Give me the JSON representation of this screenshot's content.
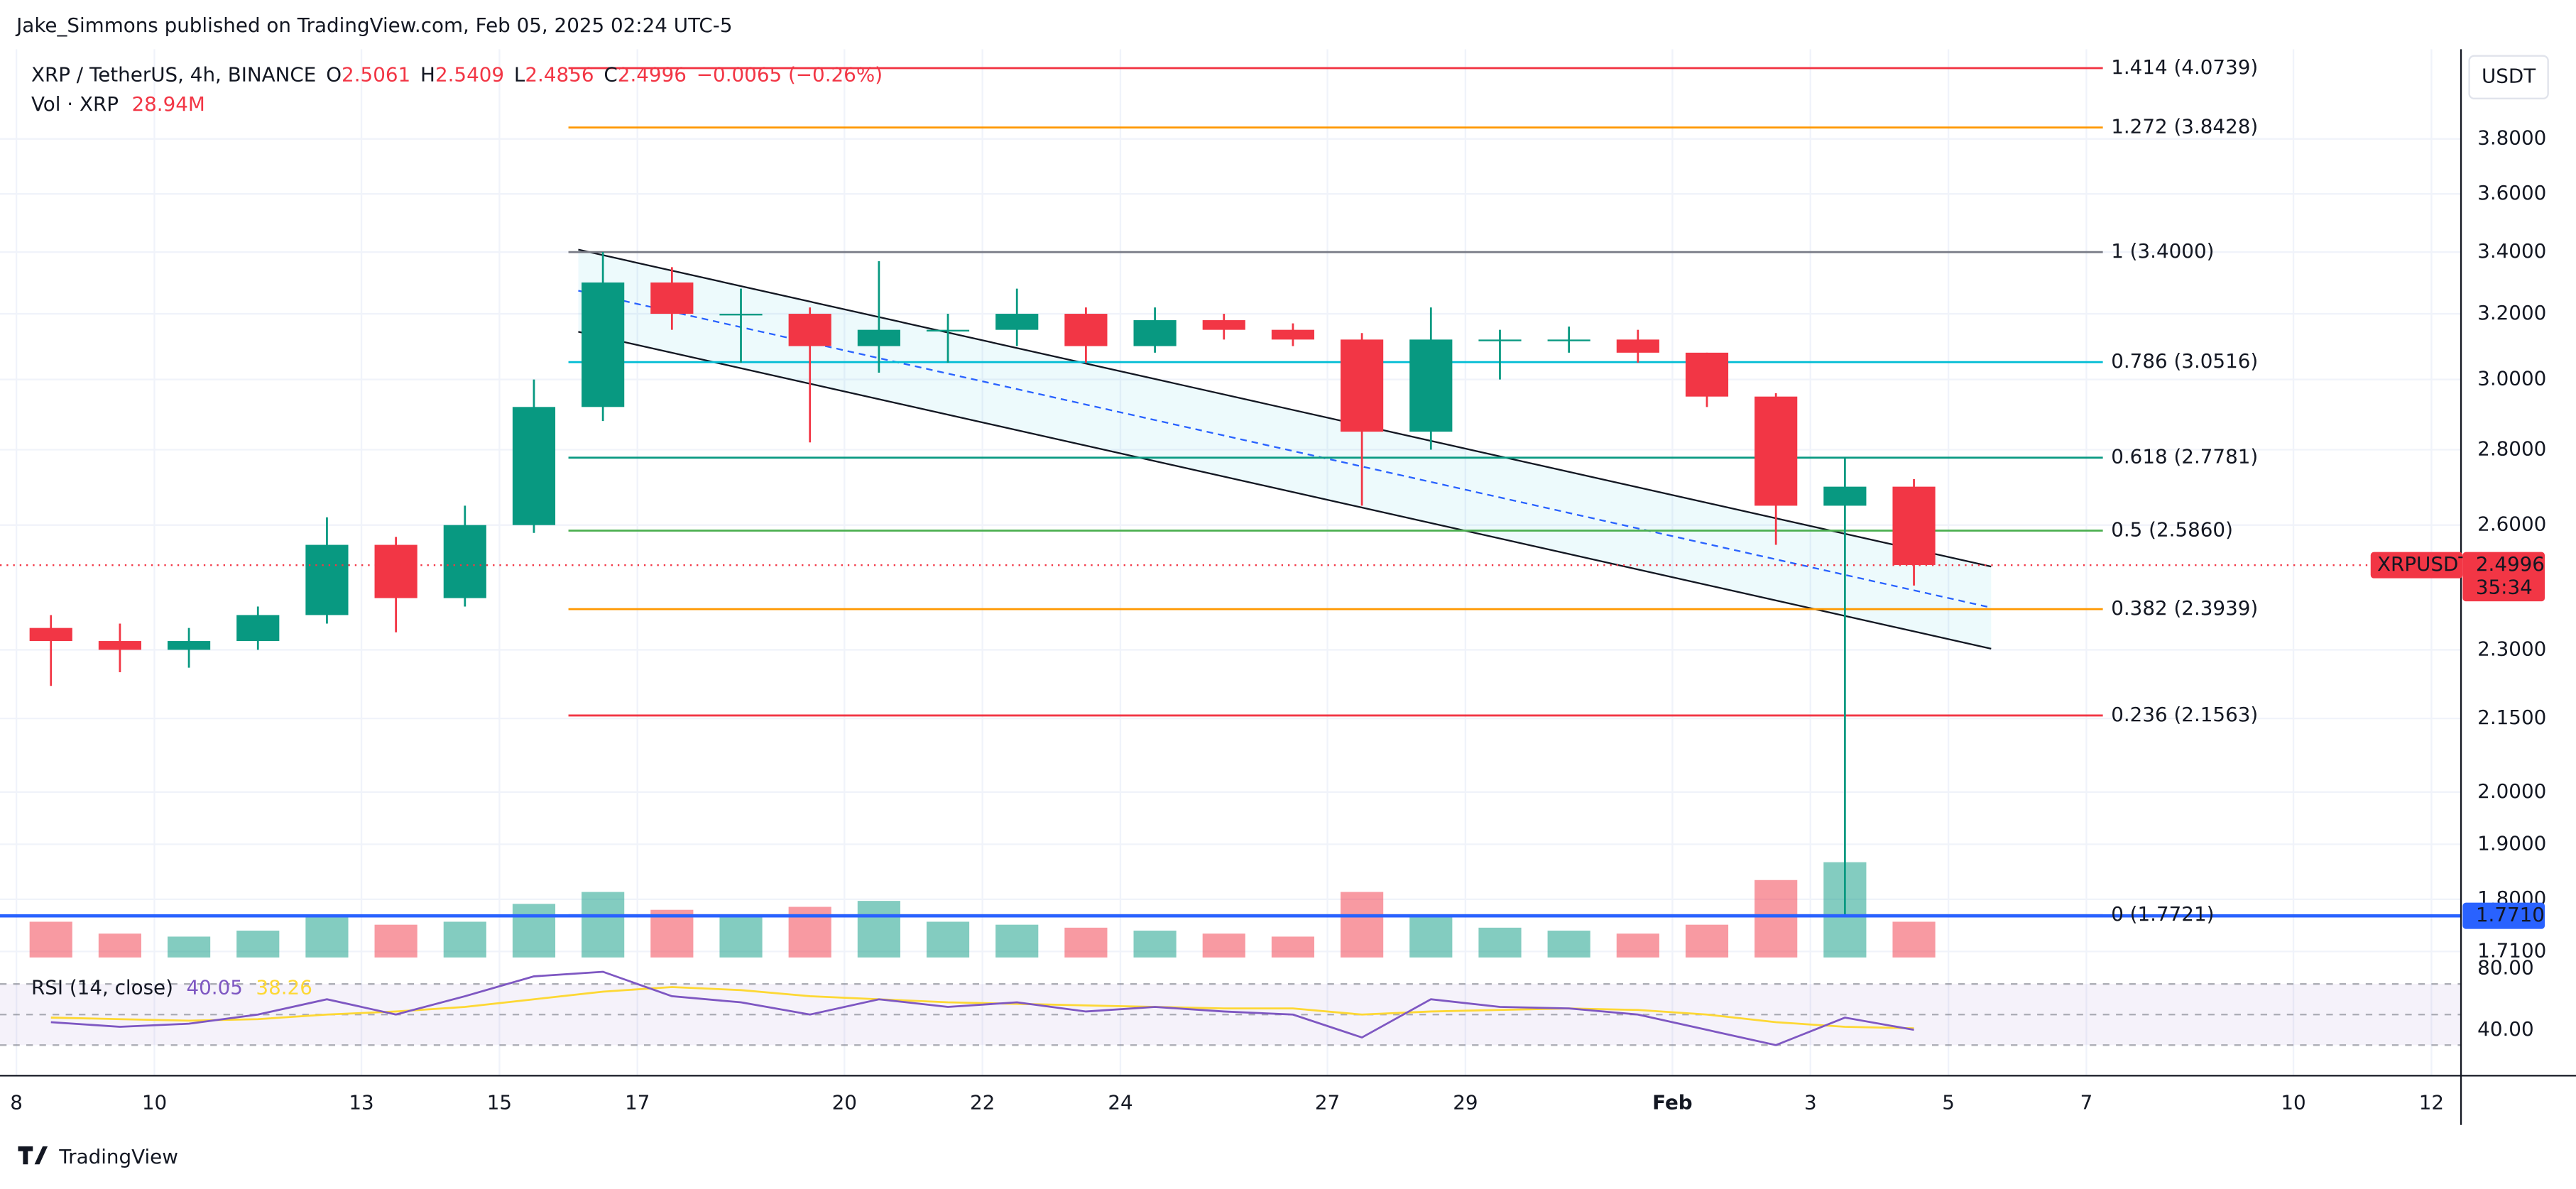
{
  "header": {
    "byline": "Jake_Simmons published on TradingView.com, Feb 05, 2025 02:24 UTC-5",
    "footer": "TradingView"
  },
  "legend": {
    "symbol": "XRP / TetherUS, 4h, BINANCE",
    "o_label": "O",
    "open": 2.5061,
    "h_label": "H",
    "high": 2.5409,
    "l_label": "L",
    "low": 2.4856,
    "c_label": "C",
    "close": 2.4996,
    "change": "−0.0065 (−0.26%)",
    "vol_label": "Vol · XRP",
    "vol": "28.94M"
  },
  "chart_data": {
    "type": "candlestick",
    "log": true,
    "grid": true,
    "up_color": "#089981",
    "down_color": "#f23645",
    "ylim": [
      1.7,
      4.15
    ],
    "axis_unit": "USDT",
    "yticks": [
      {
        "value": 3.8,
        "label": "3.8000"
      },
      {
        "value": 3.6,
        "label": "3.6000"
      },
      {
        "value": 3.4,
        "label": "3.4000"
      },
      {
        "value": 3.2,
        "label": "3.2000"
      },
      {
        "value": 3.0,
        "label": "3.0000"
      },
      {
        "value": 2.8,
        "label": "2.8000"
      },
      {
        "value": 2.6,
        "label": "2.6000"
      },
      {
        "value": 2.3,
        "label": "2.3000"
      },
      {
        "value": 2.15,
        "label": "2.1500"
      },
      {
        "value": 2.0,
        "label": "2.0000"
      },
      {
        "value": 1.9,
        "label": "1.9000"
      },
      {
        "value": 1.8,
        "label": "1.8000"
      },
      {
        "value": 1.71,
        "label": "1.7100"
      }
    ],
    "xticks": [
      {
        "value": 0,
        "label": "8"
      },
      {
        "value": 2,
        "label": "10"
      },
      {
        "value": 5,
        "label": "13"
      },
      {
        "value": 7,
        "label": "15"
      },
      {
        "value": 9,
        "label": "17"
      },
      {
        "value": 12,
        "label": "20"
      },
      {
        "value": 14,
        "label": "22"
      },
      {
        "value": 16,
        "label": "24"
      },
      {
        "value": 19,
        "label": "27"
      },
      {
        "value": 21,
        "label": "29"
      },
      {
        "value": 24,
        "label": "Feb"
      },
      {
        "value": 26,
        "label": "3"
      },
      {
        "value": 28,
        "label": "5"
      },
      {
        "value": 30,
        "label": "7"
      },
      {
        "value": 33,
        "label": "10"
      },
      {
        "value": 35,
        "label": "12"
      }
    ],
    "open": [
      2.35,
      2.32,
      2.3,
      2.32,
      2.38,
      2.55,
      2.42,
      2.6,
      2.92,
      3.3,
      3.2,
      3.2,
      3.1,
      3.15,
      3.15,
      3.2,
      3.1,
      3.18,
      3.15,
      3.12,
      2.85,
      3.12,
      3.12,
      3.12,
      3.08,
      2.95,
      2.65,
      2.7
    ],
    "high": [
      2.38,
      2.36,
      2.35,
      2.4,
      2.62,
      2.57,
      2.65,
      3.0,
      3.4,
      3.35,
      3.28,
      3.22,
      3.37,
      3.2,
      3.28,
      3.22,
      3.22,
      3.2,
      3.17,
      3.14,
      3.22,
      3.15,
      3.16,
      3.15,
      3.08,
      2.96,
      2.78,
      2.72
    ],
    "low": [
      2.22,
      2.25,
      2.26,
      2.3,
      2.36,
      2.34,
      2.4,
      2.58,
      2.88,
      3.15,
      3.05,
      2.82,
      3.02,
      3.05,
      3.1,
      3.05,
      3.08,
      3.12,
      3.1,
      2.65,
      2.8,
      3.0,
      3.08,
      3.05,
      2.92,
      2.55,
      1.77,
      2.45
    ],
    "close": [
      2.32,
      2.3,
      2.32,
      2.38,
      2.55,
      2.42,
      2.6,
      2.92,
      3.3,
      3.2,
      3.2,
      3.1,
      3.15,
      3.15,
      3.2,
      3.1,
      3.18,
      3.15,
      3.12,
      2.85,
      3.12,
      3.12,
      3.12,
      3.08,
      2.95,
      2.65,
      2.7,
      2.5
    ],
    "volume": [
      60,
      40,
      35,
      45,
      70,
      55,
      60,
      90,
      110,
      80,
      70,
      85,
      95,
      60,
      55,
      50,
      45,
      40,
      35,
      110,
      70,
      50,
      45,
      40,
      55,
      130,
      160,
      60
    ],
    "fib_levels": [
      {
        "label": "1.414 (4.0739)",
        "value": 4.0739,
        "color": "#f23645"
      },
      {
        "label": "1.272 (3.8428)",
        "value": 3.8428,
        "color": "#ff9800"
      },
      {
        "label": "1 (3.4000)",
        "value": 3.4,
        "color": "#787b86"
      },
      {
        "label": "0.786 (3.0516)",
        "value": 3.0516,
        "color": "#00bcd4"
      },
      {
        "label": "0.618 (2.7781)",
        "value": 2.7781,
        "color": "#089981"
      },
      {
        "label": "0.5 (2.5860)",
        "value": 2.586,
        "color": "#4caf50"
      },
      {
        "label": "0.382 (2.3939)",
        "value": 2.3939,
        "color": "#ff9800"
      },
      {
        "label": "0.236 (2.1563)",
        "value": 2.1563,
        "color": "#f23645"
      },
      {
        "label": "0 (1.7721)",
        "value": 1.7721,
        "color": "#787b86"
      }
    ],
    "support": {
      "value": 1.771,
      "label": "1.7710",
      "color": "#2962ff"
    },
    "price_tag": {
      "symbol": "XRPUSDT",
      "price": 2.4996,
      "countdown": "35:34",
      "color": "#f23645"
    },
    "rsi": {
      "title": "RSI (14, close)",
      "value": "40.05",
      "ma_value": "38.26",
      "ylim": [
        10,
        82
      ],
      "yticks": [
        {
          "value": 80,
          "label": "80.00"
        },
        {
          "value": 40,
          "label": "40.00"
        }
      ],
      "bands": [
        70,
        50,
        30
      ],
      "values": [
        45,
        42,
        44,
        50,
        60,
        50,
        62,
        75,
        78,
        62,
        58,
        50,
        60,
        55,
        58,
        52,
        55,
        52,
        50,
        35,
        60,
        55,
        54,
        50,
        40,
        30,
        48,
        40
      ],
      "ma": [
        48,
        47,
        46,
        47,
        50,
        52,
        55,
        60,
        65,
        68,
        66,
        62,
        60,
        58,
        57,
        56,
        55,
        54,
        54,
        50,
        52,
        53,
        54,
        53,
        50,
        45,
        42,
        41
      ]
    }
  }
}
